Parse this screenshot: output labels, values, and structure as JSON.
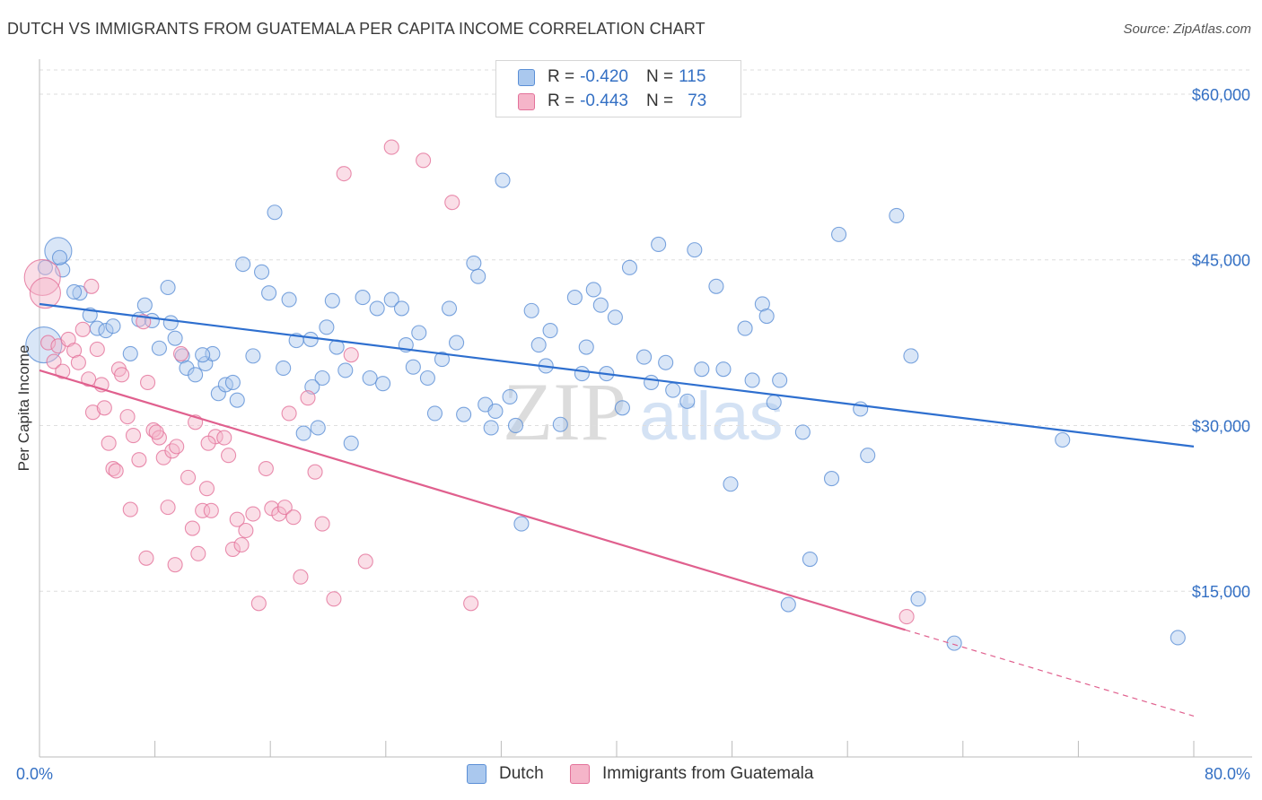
{
  "header": {
    "title": "DUTCH VS IMMIGRANTS FROM GUATEMALA PER CAPITA INCOME CORRELATION CHART",
    "source": "Source: ZipAtlas.com"
  },
  "legend": {
    "rows": [
      {
        "r_label": "R =",
        "r_value": "-0.420",
        "n_label": "N =",
        "n_value": "115",
        "color": "#aac8ee"
      },
      {
        "r_label": "R =",
        "r_value": "-0.443",
        "n_label": "N =",
        "n_value": "73",
        "color": "#f5b5c9"
      }
    ]
  },
  "watermark": {
    "zip": "ZIP",
    "atlas": "atlas"
  },
  "bottom_legend": {
    "items": [
      {
        "label": "Dutch",
        "color": "#aac8ee"
      },
      {
        "label": "Immigrants from Guatemala",
        "color": "#f5b5c9"
      }
    ]
  },
  "chart_data": {
    "type": "scatter",
    "title": "DUTCH VS IMMIGRANTS FROM GUATEMALA PER CAPITA INCOME CORRELATION CHART",
    "xlabel": "",
    "ylabel": "Per Capita Income",
    "xlim": [
      0,
      80
    ],
    "ylim": [
      0,
      63000
    ],
    "x_tick_labels": [
      "0.0%",
      "80.0%"
    ],
    "y_ticks": [
      15000,
      30000,
      45000,
      60000
    ],
    "y_tick_labels": [
      "$15,000",
      "$30,000",
      "$45,000",
      "$60,000"
    ],
    "grid": true,
    "legend_position": "top-center",
    "series": [
      {
        "name": "Dutch",
        "color": "#5b8fd6",
        "fill": "#aac8ee",
        "trend": {
          "x": [
            0,
            80
          ],
          "y": [
            41000,
            28100
          ]
        },
        "points": [
          [
            0.3,
            37300
          ],
          [
            1.3,
            45800
          ],
          [
            1.6,
            44100
          ],
          [
            2.8,
            42000
          ],
          [
            3.5,
            40000
          ],
          [
            4.0,
            38800
          ],
          [
            4.6,
            38600
          ],
          [
            5.1,
            39000
          ],
          [
            6.3,
            36500
          ],
          [
            6.9,
            39600
          ],
          [
            7.3,
            40900
          ],
          [
            7.8,
            39500
          ],
          [
            8.3,
            37000
          ],
          [
            8.9,
            42500
          ],
          [
            9.4,
            37900
          ],
          [
            9.9,
            36300
          ],
          [
            10.2,
            35200
          ],
          [
            10.8,
            34600
          ],
          [
            11.5,
            35600
          ],
          [
            12.0,
            36500
          ],
          [
            12.4,
            32900
          ],
          [
            12.9,
            33700
          ],
          [
            13.4,
            33900
          ],
          [
            13.7,
            32300
          ],
          [
            14.1,
            44600
          ],
          [
            14.8,
            36300
          ],
          [
            15.4,
            43900
          ],
          [
            15.9,
            42000
          ],
          [
            16.3,
            49300
          ],
          [
            16.9,
            35200
          ],
          [
            17.3,
            41400
          ],
          [
            17.8,
            37700
          ],
          [
            18.3,
            29300
          ],
          [
            18.8,
            37800
          ],
          [
            19.3,
            29800
          ],
          [
            19.6,
            34300
          ],
          [
            19.9,
            38900
          ],
          [
            20.3,
            41300
          ],
          [
            20.6,
            37100
          ],
          [
            21.2,
            35000
          ],
          [
            21.6,
            28400
          ],
          [
            22.4,
            41600
          ],
          [
            22.9,
            34300
          ],
          [
            23.4,
            40600
          ],
          [
            23.8,
            33800
          ],
          [
            24.4,
            41400
          ],
          [
            25.1,
            40600
          ],
          [
            25.4,
            37300
          ],
          [
            25.9,
            35300
          ],
          [
            26.3,
            38400
          ],
          [
            26.9,
            34300
          ],
          [
            27.4,
            31100
          ],
          [
            27.9,
            36000
          ],
          [
            28.4,
            40600
          ],
          [
            28.9,
            37500
          ],
          [
            29.4,
            31000
          ],
          [
            30.1,
            44700
          ],
          [
            30.4,
            43500
          ],
          [
            30.9,
            31900
          ],
          [
            31.3,
            29800
          ],
          [
            31.6,
            31300
          ],
          [
            32.1,
            52200
          ],
          [
            32.6,
            32600
          ],
          [
            33.0,
            30000
          ],
          [
            33.4,
            21100
          ],
          [
            34.1,
            40400
          ],
          [
            34.6,
            37300
          ],
          [
            35.1,
            35400
          ],
          [
            35.4,
            38600
          ],
          [
            36.1,
            30100
          ],
          [
            37.1,
            41600
          ],
          [
            37.6,
            34700
          ],
          [
            37.9,
            37100
          ],
          [
            38.4,
            42300
          ],
          [
            38.9,
            40900
          ],
          [
            39.3,
            34700
          ],
          [
            39.9,
            39800
          ],
          [
            40.4,
            31600
          ],
          [
            40.9,
            44300
          ],
          [
            41.9,
            36200
          ],
          [
            42.4,
            33900
          ],
          [
            42.9,
            46400
          ],
          [
            43.4,
            35700
          ],
          [
            43.9,
            33200
          ],
          [
            44.9,
            32200
          ],
          [
            45.4,
            45900
          ],
          [
            45.9,
            35100
          ],
          [
            46.9,
            42600
          ],
          [
            47.4,
            35100
          ],
          [
            47.9,
            24700
          ],
          [
            48.9,
            38800
          ],
          [
            49.4,
            34100
          ],
          [
            50.1,
            41000
          ],
          [
            50.4,
            39900
          ],
          [
            50.9,
            32100
          ],
          [
            51.3,
            34100
          ],
          [
            51.9,
            13800
          ],
          [
            52.9,
            29400
          ],
          [
            53.4,
            17900
          ],
          [
            54.9,
            25200
          ],
          [
            55.4,
            47300
          ],
          [
            56.9,
            31500
          ],
          [
            57.4,
            27300
          ],
          [
            59.4,
            49000
          ],
          [
            60.4,
            36300
          ],
          [
            60.9,
            14300
          ],
          [
            63.4,
            10300
          ],
          [
            70.9,
            28700
          ],
          [
            78.9,
            10800
          ],
          [
            0.4,
            44300
          ],
          [
            1.4,
            45200
          ],
          [
            2.4,
            42100
          ],
          [
            9.1,
            39300
          ],
          [
            11.3,
            36400
          ],
          [
            18.9,
            33500
          ]
        ],
        "marker_sizes": {
          "0": 20,
          "1": 15
        }
      },
      {
        "name": "Immigrants from Guatemala",
        "color": "#e3729a",
        "fill": "#f5b5c9",
        "trend": {
          "x": [
            0,
            60
          ],
          "y": [
            35000,
            11500
          ]
        },
        "trend_extrapolated": {
          "x": [
            60,
            80
          ],
          "y": [
            11500,
            3700
          ]
        },
        "points": [
          [
            0.2,
            43400
          ],
          [
            0.6,
            37500
          ],
          [
            1.0,
            35800
          ],
          [
            1.3,
            37200
          ],
          [
            1.6,
            34900
          ],
          [
            2.0,
            37800
          ],
          [
            2.4,
            36800
          ],
          [
            2.7,
            35700
          ],
          [
            3.0,
            38700
          ],
          [
            3.4,
            34200
          ],
          [
            3.7,
            31200
          ],
          [
            4.0,
            36900
          ],
          [
            4.3,
            33700
          ],
          [
            4.5,
            31600
          ],
          [
            4.8,
            28400
          ],
          [
            5.1,
            26100
          ],
          [
            5.5,
            35100
          ],
          [
            5.7,
            34600
          ],
          [
            6.1,
            30800
          ],
          [
            6.5,
            29100
          ],
          [
            6.9,
            26900
          ],
          [
            7.2,
            39400
          ],
          [
            7.5,
            33900
          ],
          [
            7.9,
            29600
          ],
          [
            8.3,
            28900
          ],
          [
            8.6,
            27100
          ],
          [
            8.9,
            22600
          ],
          [
            9.2,
            27700
          ],
          [
            9.5,
            28100
          ],
          [
            9.8,
            36500
          ],
          [
            10.3,
            25300
          ],
          [
            10.6,
            20700
          ],
          [
            11.0,
            18400
          ],
          [
            11.3,
            22300
          ],
          [
            11.6,
            24300
          ],
          [
            11.9,
            22300
          ],
          [
            12.2,
            29000
          ],
          [
            12.8,
            28900
          ],
          [
            13.1,
            27300
          ],
          [
            13.4,
            18800
          ],
          [
            13.7,
            21500
          ],
          [
            14.0,
            19200
          ],
          [
            14.3,
            20500
          ],
          [
            14.8,
            22000
          ],
          [
            15.2,
            13900
          ],
          [
            15.7,
            26100
          ],
          [
            16.1,
            22500
          ],
          [
            16.6,
            22000
          ],
          [
            17.0,
            22600
          ],
          [
            17.3,
            31100
          ],
          [
            17.6,
            21700
          ],
          [
            18.1,
            16300
          ],
          [
            18.6,
            32500
          ],
          [
            19.1,
            25800
          ],
          [
            19.6,
            21100
          ],
          [
            20.4,
            14300
          ],
          [
            21.1,
            52800
          ],
          [
            21.6,
            36400
          ],
          [
            22.6,
            17700
          ],
          [
            24.4,
            55200
          ],
          [
            26.6,
            54000
          ],
          [
            28.6,
            50200
          ],
          [
            29.9,
            13900
          ],
          [
            7.4,
            18000
          ],
          [
            3.6,
            42600
          ],
          [
            5.3,
            25900
          ],
          [
            6.3,
            22400
          ],
          [
            8.1,
            29400
          ],
          [
            9.4,
            17400
          ],
          [
            10.8,
            30300
          ],
          [
            11.7,
            28400
          ],
          [
            0.4,
            42000
          ],
          [
            60.1,
            12700
          ]
        ],
        "marker_sizes": {
          "0": 20,
          "71": 17
        }
      }
    ]
  }
}
